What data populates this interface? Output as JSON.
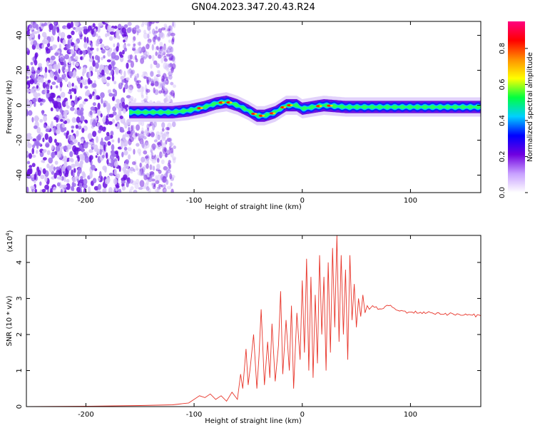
{
  "figure_title": "GN04.2023.347.20.43.R24",
  "chart_data": [
    {
      "type": "heatmap",
      "panel": "spectrogram",
      "xlabel": "Height of straight line (km)",
      "ylabel": "Frequency (Hz)",
      "xlim": [
        -255,
        165
      ],
      "ylim": [
        -50,
        48
      ],
      "xticks": [
        -200,
        -100,
        0,
        100
      ],
      "yticks": [
        -40,
        -20,
        0,
        20,
        40
      ],
      "grid": false,
      "description_signal": "noise scatter for x < -120 km; narrow signal band around 0 Hz from about -160 km to 165 km",
      "band_center": [
        {
          "x": -160,
          "y": -4
        },
        {
          "x": -140,
          "y": -4
        },
        {
          "x": -120,
          "y": -4
        },
        {
          "x": -105,
          "y": -3
        },
        {
          "x": -90,
          "y": -1
        },
        {
          "x": -80,
          "y": 1
        },
        {
          "x": -70,
          "y": 2
        },
        {
          "x": -60,
          "y": 0
        },
        {
          "x": -50,
          "y": -3
        },
        {
          "x": -42,
          "y": -6
        },
        {
          "x": -35,
          "y": -6
        },
        {
          "x": -25,
          "y": -4
        },
        {
          "x": -15,
          "y": 0
        },
        {
          "x": -5,
          "y": 0
        },
        {
          "x": 0,
          "y": -2
        },
        {
          "x": 20,
          "y": 0
        },
        {
          "x": 40,
          "y": -1
        },
        {
          "x": 80,
          "y": -1
        },
        {
          "x": 120,
          "y": -1
        },
        {
          "x": 165,
          "y": -1
        }
      ],
      "colorbar": {
        "label": "Normalized spectral amplitude",
        "range": [
          0.0,
          0.95
        ],
        "ticks": [
          "0.0",
          "0.2",
          "0.4",
          "0.6",
          "0.8"
        ],
        "colors": [
          "#ffffff",
          "#c8a0ff",
          "#7000e0",
          "#0000ff",
          "#00d0ff",
          "#00ff40",
          "#ffff00",
          "#ff9000",
          "#ff0000",
          "#ff0080"
        ]
      }
    },
    {
      "type": "line",
      "panel": "snr",
      "xlabel": "Height of straight line (km)",
      "ylabel": "SNR (10 * v/v)",
      "scale_label": "(x10",
      "scale_exp": "4",
      "xlim": [
        -255,
        165
      ],
      "ylim": [
        0,
        4.75
      ],
      "xticks": [
        -200,
        -100,
        0,
        100
      ],
      "yticks": [
        0,
        1,
        2,
        3,
        4
      ],
      "grid": false,
      "color": "#e8352a",
      "series": [
        {
          "x": [
            -255,
            -200,
            -150,
            -120,
            -105,
            -100,
            -95,
            -90,
            -85,
            -80,
            -75,
            -70,
            -65,
            -60,
            -57,
            -55,
            -52,
            -50,
            -48,
            -45,
            -42,
            -40,
            -38,
            -35,
            -32,
            -30,
            -28,
            -25,
            -22,
            -20,
            -18,
            -15,
            -12,
            -10,
            -8,
            -5,
            -2,
            0,
            2,
            4,
            6,
            8,
            10,
            12,
            14,
            16,
            18,
            20,
            22,
            24,
            26,
            28,
            30,
            32,
            34,
            36,
            38,
            40,
            42,
            44,
            46,
            48,
            50,
            52,
            54,
            56,
            58,
            60,
            62,
            65,
            70,
            80,
            90,
            100,
            120,
            140,
            165
          ],
          "y": [
            0.0,
            0.01,
            0.03,
            0.05,
            0.1,
            0.2,
            0.3,
            0.25,
            0.35,
            0.2,
            0.3,
            0.15,
            0.4,
            0.2,
            0.9,
            0.5,
            1.6,
            0.6,
            1.1,
            2.0,
            0.5,
            1.4,
            2.7,
            0.6,
            1.8,
            0.8,
            2.3,
            0.7,
            1.7,
            3.2,
            0.9,
            2.4,
            1.0,
            2.8,
            0.5,
            2.6,
            1.3,
            3.5,
            1.5,
            4.1,
            1.0,
            3.6,
            0.8,
            3.1,
            1.2,
            4.2,
            2.0,
            3.6,
            1.0,
            4.0,
            1.5,
            4.4,
            2.2,
            4.75,
            1.8,
            4.2,
            2.0,
            3.8,
            1.3,
            4.2,
            2.4,
            3.4,
            2.2,
            3.0,
            2.5,
            3.1,
            2.6,
            2.8,
            2.7,
            2.8,
            2.7,
            2.8,
            2.65,
            2.62,
            2.6,
            2.56,
            2.52
          ]
        }
      ]
    }
  ]
}
